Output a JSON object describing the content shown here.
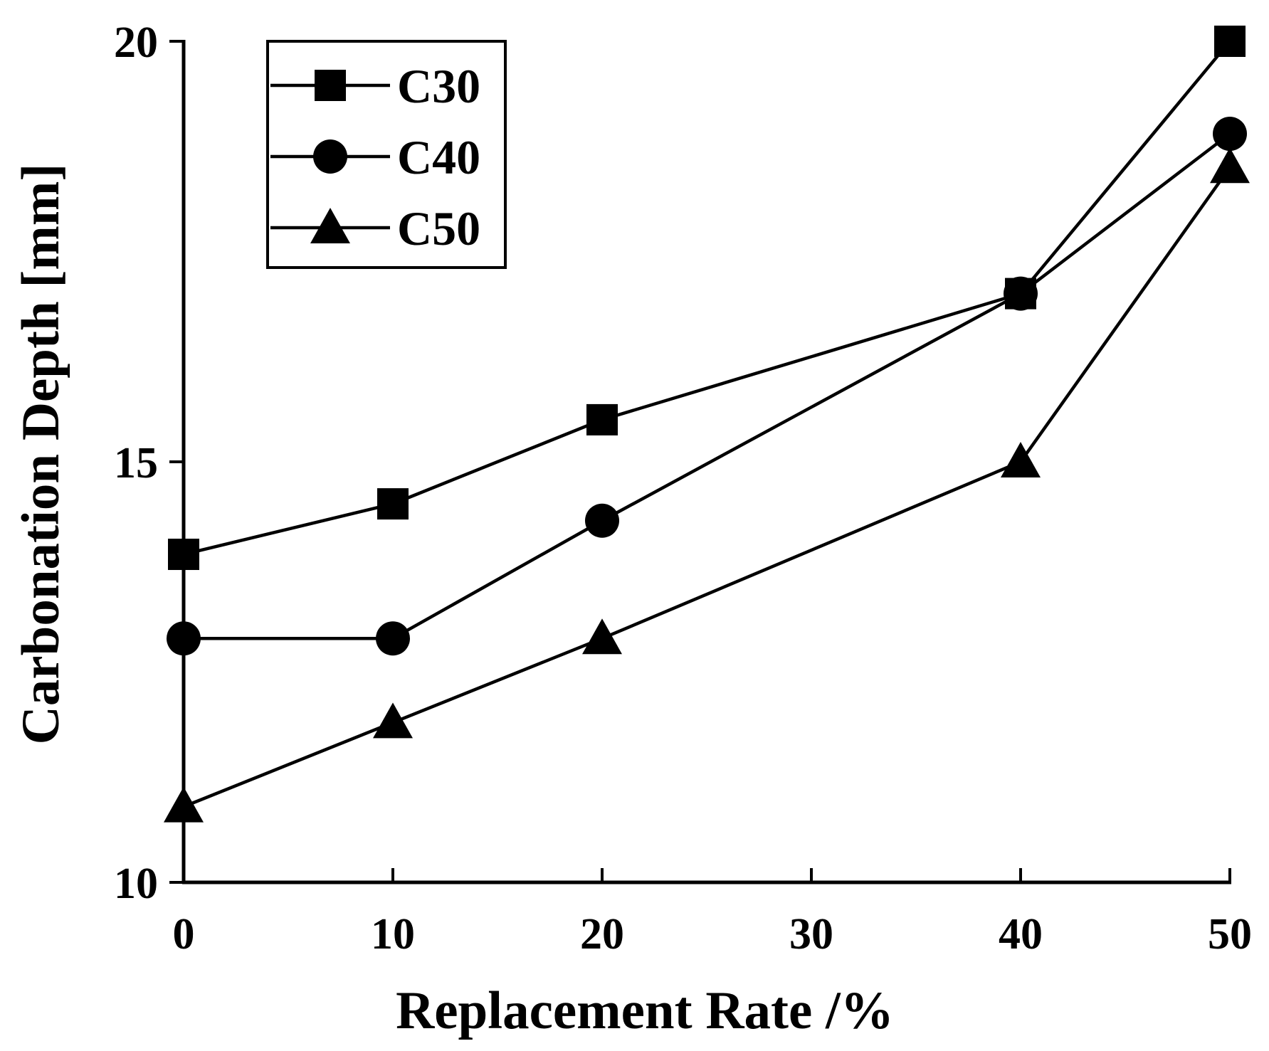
{
  "chart_data": {
    "type": "line",
    "title": "",
    "xlabel": "Replacement Rate /%",
    "ylabel": "Carbonation Depth [mm]",
    "x": [
      0,
      10,
      20,
      40,
      50
    ],
    "xlim": [
      0,
      50
    ],
    "ylim": [
      10,
      20
    ],
    "xticks": [
      0,
      10,
      20,
      30,
      40,
      50
    ],
    "yticks": [
      10,
      15,
      20
    ],
    "xtick_labels": [
      "0",
      "10",
      "20",
      "30",
      "40",
      "50"
    ],
    "ytick_labels": [
      "10",
      "15",
      "20"
    ],
    "grid": false,
    "legend_position": "top-left",
    "series": [
      {
        "name": "C30",
        "marker": "square",
        "values": [
          13.9,
          14.5,
          15.5,
          17.0,
          20.0
        ]
      },
      {
        "name": "C40",
        "marker": "circle",
        "values": [
          12.9,
          12.9,
          14.3,
          17.0,
          18.9
        ]
      },
      {
        "name": "C50",
        "marker": "triangle",
        "values": [
          10.9,
          11.9,
          12.9,
          15.0,
          18.5
        ]
      }
    ],
    "colors": {
      "line": "#000000",
      "background": "#ffffff"
    }
  }
}
